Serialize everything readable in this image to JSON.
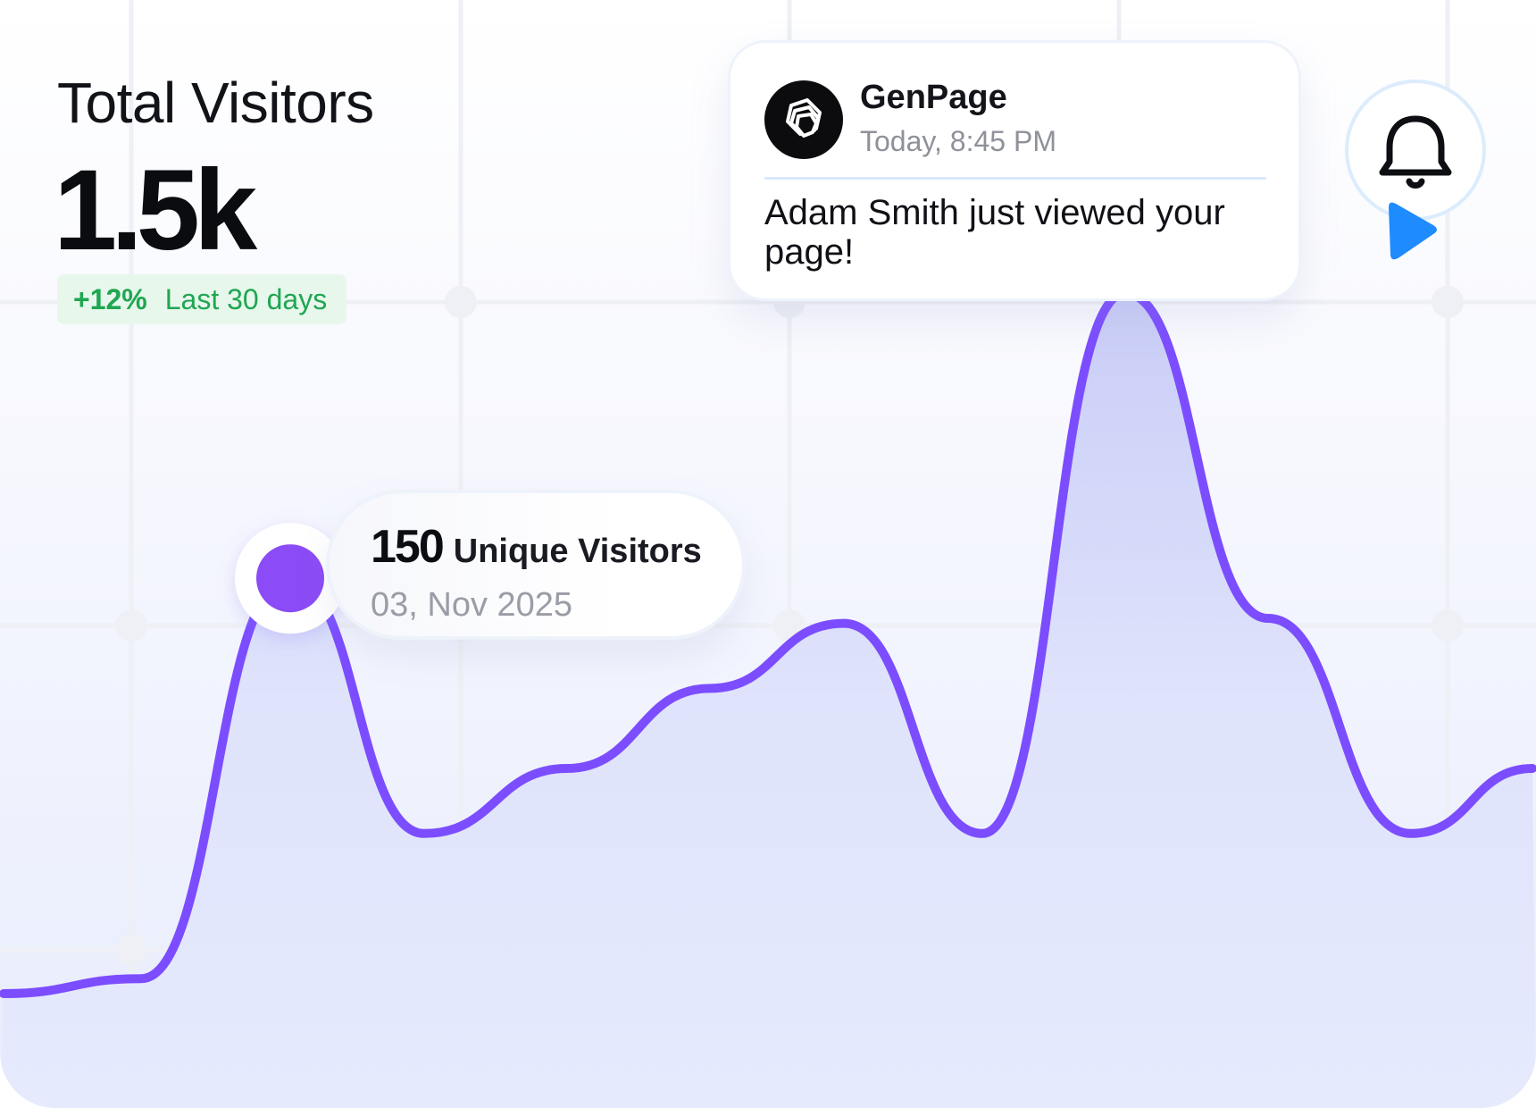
{
  "stats": {
    "title": "Total Visitors",
    "value": "1.5k",
    "change": "+12%",
    "period": "Last 30 days"
  },
  "tooltip": {
    "count": "150",
    "label": "Unique Visitors",
    "date": "03, Nov 2025"
  },
  "notification": {
    "app_name": "GenPage",
    "time": "Today, 8:45 PM",
    "message": "Adam Smith just viewed your page!",
    "logo_icon": "genpage-logo-icon"
  },
  "icons": {
    "bell": "bell-icon",
    "cursor": "cursor-pointer-icon"
  },
  "colors": {
    "line": "#7c4dff",
    "accent_green": "#1fa651",
    "marker": "#8b4bf6"
  },
  "chart_data": {
    "type": "area",
    "values": [
      0.1,
      0.13,
      0.93,
      0.42,
      0.55,
      0.71,
      0.84,
      0.42,
      1.5,
      0.85,
      0.42,
      0.55
    ],
    "highlight_index": 2,
    "grid": true
  }
}
